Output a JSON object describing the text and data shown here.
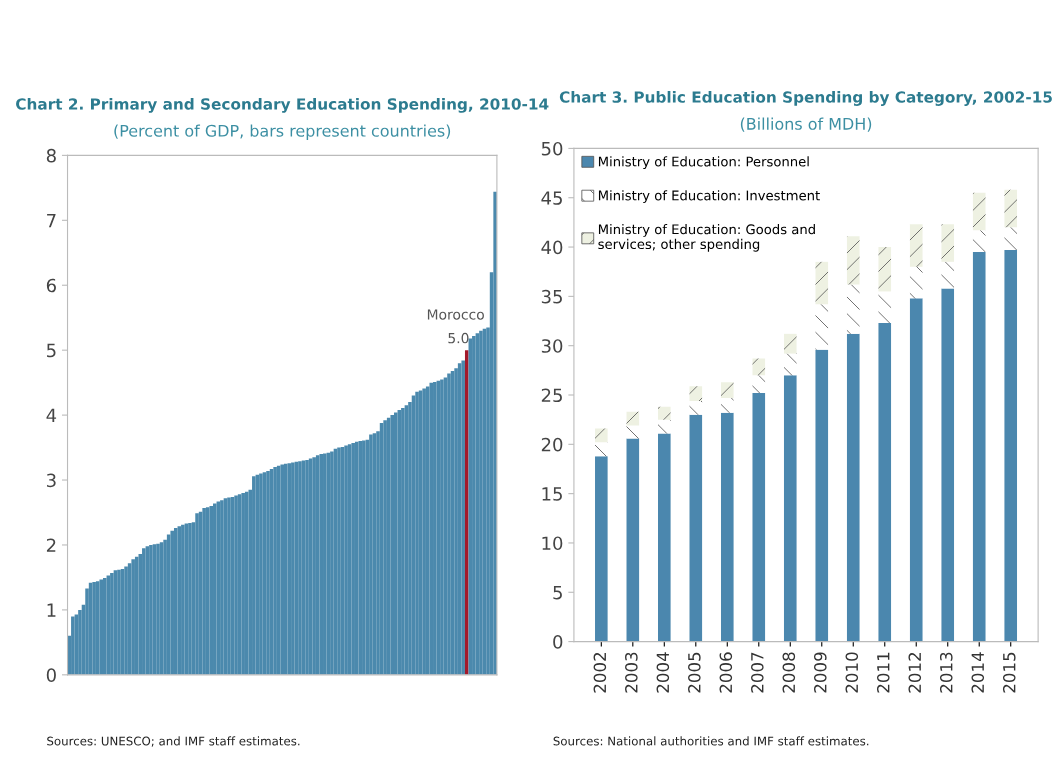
{
  "chart_data": [
    {
      "type": "bar",
      "title": "Chart 2. Primary and Secondary Education Spending, 2010-14",
      "subtitle": "(Percent of GDP, bars represent countries)",
      "categories": [
        null,
        null,
        null,
        null,
        null,
        null,
        null,
        null,
        null,
        null,
        null,
        null,
        null,
        null,
        null,
        null,
        null,
        null,
        null,
        null,
        null,
        null,
        null,
        null,
        null,
        null,
        null,
        null,
        null,
        null,
        null,
        null,
        null,
        null,
        null,
        null,
        null,
        null,
        null,
        null,
        null,
        null,
        null,
        null,
        null,
        null,
        null,
        null,
        null,
        null,
        null,
        null,
        null,
        null,
        null,
        null,
        null,
        null,
        null,
        null,
        null,
        null,
        null,
        null,
        null,
        null,
        null,
        null,
        null,
        null,
        null,
        null,
        null,
        null,
        null,
        null,
        null,
        null,
        null,
        null,
        null,
        null,
        null,
        null,
        null,
        null,
        null,
        null,
        null,
        null,
        null,
        null,
        null,
        null,
        null,
        null,
        null,
        null,
        null,
        null,
        null,
        null,
        null,
        null,
        null,
        null,
        null,
        null,
        null,
        null,
        null,
        null,
        null,
        null,
        null,
        null,
        null,
        null,
        null,
        null,
        null
      ],
      "values": [
        0.6,
        0.9,
        0.93,
        1.0,
        1.08,
        1.33,
        1.42,
        1.43,
        1.44,
        1.47,
        1.49,
        1.53,
        1.57,
        1.61,
        1.62,
        1.63,
        1.67,
        1.72,
        1.78,
        1.82,
        1.86,
        1.95,
        1.98,
        2.0,
        2.01,
        2.02,
        2.04,
        2.08,
        2.16,
        2.22,
        2.26,
        2.29,
        2.31,
        2.33,
        2.34,
        2.35,
        2.49,
        2.51,
        2.57,
        2.58,
        2.6,
        2.64,
        2.67,
        2.69,
        2.72,
        2.73,
        2.74,
        2.76,
        2.78,
        2.8,
        2.82,
        2.85,
        3.06,
        3.08,
        3.1,
        3.12,
        3.14,
        3.17,
        3.2,
        3.22,
        3.24,
        3.25,
        3.26,
        3.27,
        3.28,
        3.29,
        3.3,
        3.31,
        3.33,
        3.35,
        3.38,
        3.4,
        3.41,
        3.42,
        3.44,
        3.48,
        3.5,
        3.51,
        3.53,
        3.55,
        3.57,
        3.59,
        3.6,
        3.61,
        3.62,
        3.7,
        3.72,
        3.75,
        3.88,
        3.92,
        3.96,
        4.0,
        4.04,
        4.08,
        4.11,
        4.15,
        4.2,
        4.3,
        4.36,
        4.38,
        4.41,
        4.44,
        4.5,
        4.51,
        4.53,
        4.55,
        4.58,
        4.64,
        4.68,
        4.72,
        4.8,
        4.84,
        5.0,
        5.18,
        5.22,
        5.26,
        5.3,
        5.33,
        5.35,
        6.2,
        7.44
      ],
      "colors": [
        "#4b89ad",
        "#4b89ad",
        "#4b89ad",
        "#4b89ad",
        "#4b89ad",
        "#4b89ad",
        "#4b89ad",
        "#4b89ad",
        "#4b89ad",
        "#4b89ad",
        "#4b89ad",
        "#4b89ad",
        "#4b89ad",
        "#4b89ad",
        "#4b89ad",
        "#4b89ad",
        "#4b89ad",
        "#4b89ad",
        "#4b89ad",
        "#4b89ad",
        "#4b89ad",
        "#4b89ad",
        "#4b89ad",
        "#4b89ad",
        "#4b89ad",
        "#4b89ad",
        "#4b89ad",
        "#4b89ad",
        "#4b89ad",
        "#4b89ad",
        "#4b89ad",
        "#4b89ad",
        "#4b89ad",
        "#4b89ad",
        "#4b89ad",
        "#4b89ad",
        "#4b89ad",
        "#4b89ad",
        "#4b89ad",
        "#4b89ad",
        "#4b89ad",
        "#4b89ad",
        "#4b89ad",
        "#4b89ad",
        "#4b89ad",
        "#4b89ad",
        "#4b89ad",
        "#4b89ad",
        "#4b89ad",
        "#4b89ad",
        "#4b89ad",
        "#4b89ad",
        "#4b89ad",
        "#4b89ad",
        "#4b89ad",
        "#4b89ad",
        "#4b89ad",
        "#4b89ad",
        "#4b89ad",
        "#4b89ad",
        "#4b89ad",
        "#4b89ad",
        "#4b89ad",
        "#4b89ad",
        "#4b89ad",
        "#4b89ad",
        "#4b89ad",
        "#4b89ad",
        "#4b89ad",
        "#4b89ad",
        "#4b89ad",
        "#4b89ad",
        "#4b89ad",
        "#4b89ad",
        "#4b89ad",
        "#4b89ad",
        "#4b89ad",
        "#4b89ad",
        "#4b89ad",
        "#4b89ad",
        "#4b89ad",
        "#4b89ad",
        "#4b89ad",
        "#4b89ad",
        "#4b89ad",
        "#4b89ad",
        "#4b89ad",
        "#4b89ad",
        "#4b89ad",
        "#4b89ad",
        "#4b89ad",
        "#4b89ad",
        "#4b89ad",
        "#4b89ad",
        "#4b89ad",
        "#4b89ad",
        "#4b89ad",
        "#4b89ad",
        "#4b89ad",
        "#4b89ad",
        "#4b89ad",
        "#4b89ad",
        "#4b89ad",
        "#4b89ad",
        "#4b89ad",
        "#4b89ad",
        "#4b89ad",
        "#4b89ad",
        "#4b89ad",
        "#4b89ad",
        "#4b89ad",
        "#4b89ad",
        "#a3192b",
        "#4b89ad",
        "#4b89ad",
        "#4b89ad",
        "#4b89ad",
        "#4b89ad",
        "#4b89ad",
        "#4b89ad",
        "#4b89ad"
      ],
      "value_labels": [
        null,
        null,
        null,
        null,
        null,
        null,
        null,
        null,
        null,
        null,
        null,
        null,
        null,
        null,
        null,
        null,
        null,
        null,
        null,
        null,
        null,
        null,
        null,
        null,
        null,
        null,
        null,
        null,
        null,
        null,
        null,
        null,
        null,
        null,
        null,
        null,
        null,
        null,
        null,
        null,
        null,
        null,
        null,
        null,
        null,
        null,
        null,
        null,
        null,
        null,
        null,
        null,
        null,
        null,
        null,
        null,
        null,
        null,
        null,
        null,
        null,
        null,
        null,
        null,
        null,
        null,
        null,
        null,
        null,
        null,
        null,
        null,
        null,
        null,
        null,
        null,
        null,
        null,
        null,
        null,
        null,
        null,
        null,
        null,
        null,
        null,
        null,
        null,
        null,
        null,
        null,
        null,
        null,
        null,
        null,
        null,
        null,
        null,
        null,
        null,
        null,
        null,
        null,
        null,
        null,
        null,
        null,
        null,
        null,
        null,
        null,
        null,
        "5.0",
        null,
        null,
        null,
        null,
        null,
        null,
        null,
        null
      ],
      "annotations": [
        "Morocco",
        "Sources: UNESCO; and IMF staff estimates."
      ],
      "ylim": [
        0,
        8
      ],
      "yticks": [
        0,
        1,
        2,
        3,
        4,
        5,
        6,
        7,
        8
      ],
      "tick_labels": "y",
      "grid": false
    },
    {
      "type": "bar",
      "title": "Chart 3. Public Education Spending by Category, 2002-15",
      "subtitle": "(Billions of MDH)",
      "categories": [
        "2002",
        "2003",
        "2004",
        "2005",
        "2006",
        "2007",
        "2008",
        "2009",
        "2010",
        "2011",
        "2012",
        "2013",
        "2014",
        "2015"
      ],
      "stacked": true,
      "series": [
        {
          "name": "Ministry of Education: Personnel",
          "color": "#4b87ae",
          "values": [
            18.8,
            20.6,
            21.1,
            23.0,
            23.2,
            25.2,
            27.0,
            29.6,
            31.2,
            32.3,
            34.8,
            35.8,
            39.5,
            39.7
          ]
        },
        {
          "name": "Ministry of Education: Investment",
          "color": "#ffffff",
          "values": [
            1.4,
            1.3,
            1.4,
            1.4,
            1.5,
            1.8,
            2.2,
            4.6,
            5.0,
            3.2,
            3.2,
            2.7,
            2.2,
            2.3
          ]
        },
        {
          "name": "Ministry of Education: Goods and services; other spending",
          "color": "#eef1e2",
          "values": [
            1.4,
            1.4,
            1.3,
            1.5,
            1.6,
            1.7,
            2.0,
            4.3,
            4.9,
            4.5,
            4.3,
            3.8,
            3.8,
            3.8
          ]
        }
      ],
      "annotations": [
        "Sources: National authorities and IMF staff estimates."
      ],
      "ylim": [
        0,
        50
      ],
      "yticks": [
        0,
        5,
        10,
        15,
        20,
        25,
        30,
        35,
        40,
        45,
        50
      ],
      "legend": "top left",
      "grid": false
    }
  ]
}
